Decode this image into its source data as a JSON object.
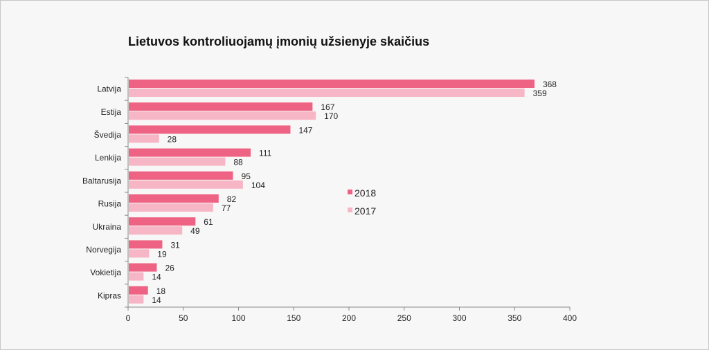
{
  "chart_data": {
    "type": "bar",
    "orientation": "horizontal",
    "title": "Lietuvos kontroliuojamų įmonių užsienyje skaičius",
    "categories": [
      "Latvija",
      "Estija",
      "Švedija",
      "Lenkija",
      "Baltarusija",
      "Rusija",
      "Ukraina",
      "Norvegija",
      "Vokietija",
      "Kipras"
    ],
    "series": [
      {
        "name": "2018",
        "color": "#ee6384",
        "values": [
          368,
          167,
          147,
          111,
          95,
          82,
          61,
          31,
          26,
          18
        ]
      },
      {
        "name": "2017",
        "color": "#f7b6c5",
        "values": [
          359,
          170,
          28,
          88,
          104,
          77,
          49,
          19,
          14,
          14
        ]
      }
    ],
    "xlim": [
      0,
      400
    ],
    "xticks": [
      0,
      50,
      100,
      150,
      200,
      250,
      300,
      350,
      400
    ],
    "xlabel": "",
    "ylabel": "",
    "grid": false,
    "legend_position": "right-middle"
  }
}
